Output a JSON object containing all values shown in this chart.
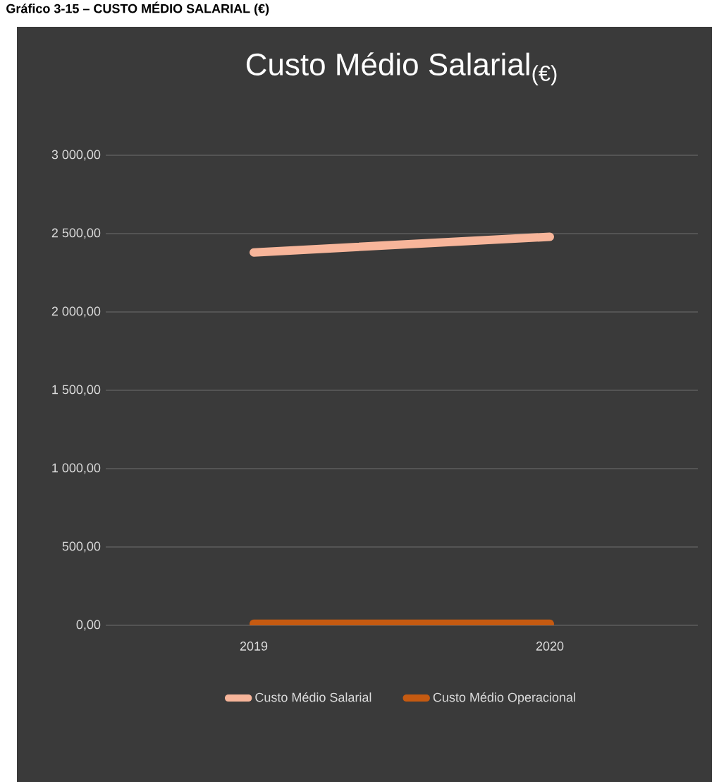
{
  "chart_data": {
    "type": "line",
    "title": "Custo Médio Salarial$_{(€)}$",
    "annotations": [
      "Gráfico 3-15 – CUSTO MÉDIO SALARIAL (€)"
    ],
    "categories": [
      "2019",
      "2020"
    ],
    "series": [
      {
        "name": "Custo Médio Salarial",
        "color": "#f7b59a",
        "values": [
          2380,
          2480
        ]
      },
      {
        "name": "Custo Médio Operacional",
        "color": "#c55a11",
        "values": [
          10,
          10
        ]
      }
    ],
    "ylim": [
      0,
      3000
    ],
    "yticks": [
      {
        "value": 0,
        "label": "0,00"
      },
      {
        "value": 500,
        "label": "500,00"
      },
      {
        "value": 1000,
        "label": "1 000,00"
      },
      {
        "value": 1500,
        "label": "1 500,00"
      },
      {
        "value": 2000,
        "label": "2 000,00"
      },
      {
        "value": 2500,
        "label": "2 500,00"
      },
      {
        "value": 3000,
        "label": "3 000,00"
      }
    ],
    "grid": "y",
    "legend": "bottom",
    "marker": "none",
    "line_style": "solid"
  }
}
